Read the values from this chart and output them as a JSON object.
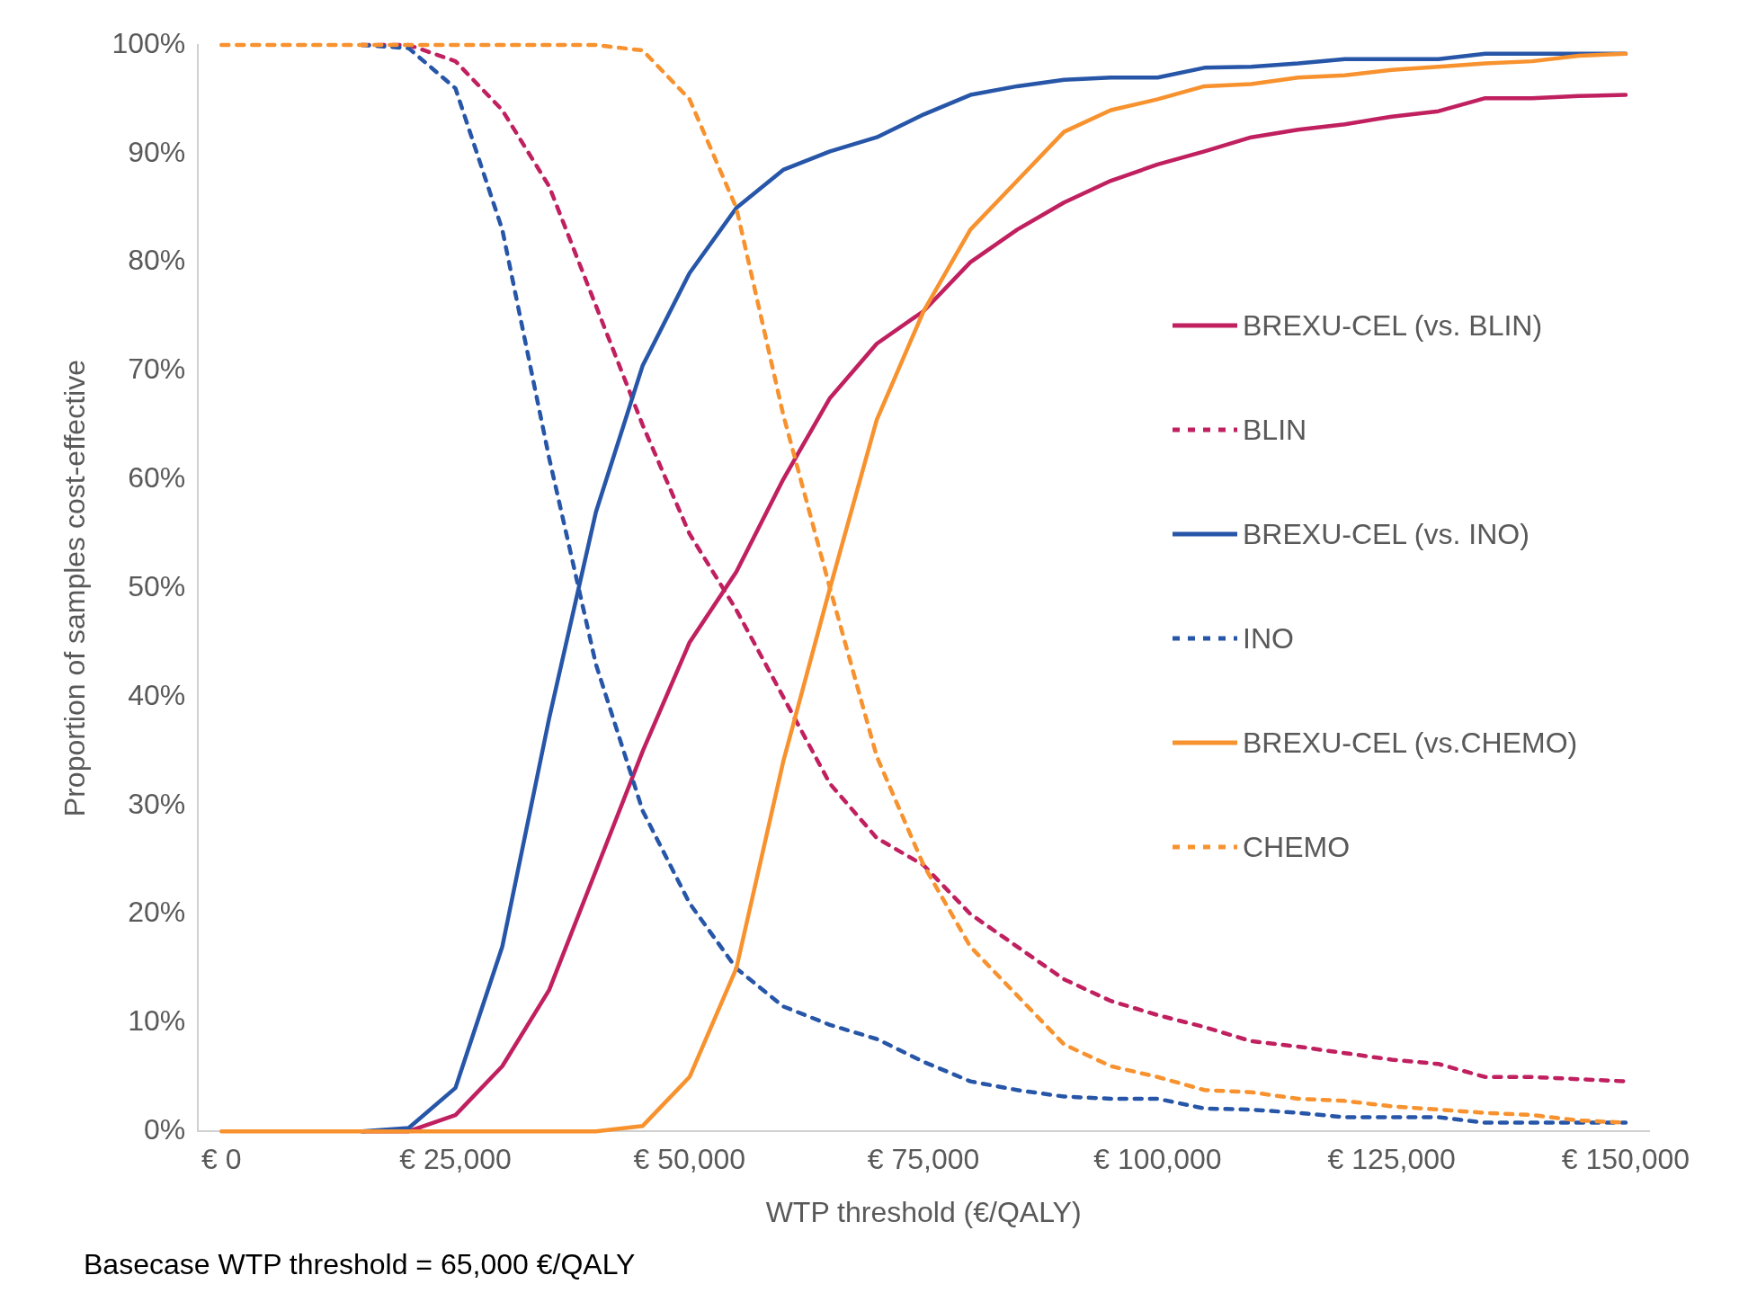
{
  "chart_data": {
    "type": "line",
    "xlabel": "WTP threshold (€/QALY)",
    "ylabel": "Proportion of samples cost-effective",
    "x": [
      0,
      5000,
      10000,
      15000,
      20000,
      25000,
      30000,
      35000,
      40000,
      45000,
      50000,
      55000,
      60000,
      65000,
      70000,
      75000,
      80000,
      85000,
      90000,
      95000,
      100000,
      105000,
      110000,
      115000,
      120000,
      125000,
      130000,
      135000,
      140000,
      145000,
      150000
    ],
    "series": [
      {
        "name": "BREXU-CEL (vs. BLIN)",
        "color": "#c0205f",
        "line_style": "solid",
        "values": [
          null,
          null,
          null,
          0,
          0,
          1.5,
          6,
          13,
          24,
          35,
          45,
          51.5,
          60,
          67.5,
          72.5,
          75.5,
          80,
          83,
          85.5,
          87.5,
          89,
          90.2,
          91.5,
          92.2,
          92.7,
          93.4,
          93.9,
          95.1,
          95.1,
          95.3,
          95.4
        ]
      },
      {
        "name": "BLIN",
        "color": "#c0205f",
        "line_style": "dashed",
        "values": [
          null,
          null,
          null,
          100,
          100,
          98.5,
          94,
          87,
          76,
          65,
          55,
          48,
          40,
          32,
          27,
          24.5,
          20,
          17,
          14,
          12,
          10.7,
          9.6,
          8.3,
          7.8,
          7.2,
          6.6,
          6.2,
          5,
          5,
          4.8,
          4.6
        ]
      },
      {
        "name": "BREXU-CEL (vs. INO)",
        "color": "#2756a8",
        "line_style": "solid",
        "values": [
          null,
          null,
          null,
          0,
          0.3,
          4,
          17,
          38,
          57,
          70.5,
          79,
          85,
          88.5,
          90.2,
          91.5,
          93.6,
          95.4,
          96.2,
          96.8,
          97,
          97,
          97.9,
          98,
          98.3,
          98.7,
          98.7,
          98.7,
          99.2,
          99.2,
          99.2,
          99.2
        ]
      },
      {
        "name": "INO",
        "color": "#2756a8",
        "line_style": "dashed",
        "values": [
          null,
          null,
          null,
          100,
          99.7,
          96,
          83,
          62,
          43,
          29.5,
          21,
          15,
          11.5,
          9.8,
          8.5,
          6.4,
          4.6,
          3.8,
          3.2,
          3,
          3,
          2.1,
          2,
          1.7,
          1.3,
          1.3,
          1.3,
          0.8,
          0.8,
          0.8,
          0.8
        ]
      },
      {
        "name": "BREXU-CEL (vs.CHEMO)",
        "color": "#f7922f",
        "line_style": "solid",
        "values": [
          0,
          0,
          0,
          0,
          0,
          0,
          0,
          0,
          0,
          0.5,
          5,
          15,
          34,
          50,
          65.5,
          75.5,
          83,
          87.5,
          92,
          94,
          95,
          96.2,
          96.4,
          97,
          97.2,
          97.7,
          98,
          98.3,
          98.5,
          99,
          99.2
        ]
      },
      {
        "name": "CHEMO",
        "color": "#f7922f",
        "line_style": "dashed",
        "values": [
          100,
          100,
          100,
          100,
          100,
          100,
          100,
          100,
          100,
          99.5,
          95,
          85,
          66,
          50,
          34.5,
          24.5,
          17,
          12.5,
          8,
          6,
          5,
          3.8,
          3.6,
          3,
          2.8,
          2.3,
          2,
          1.7,
          1.5,
          1,
          0.8
        ]
      }
    ],
    "xlim": [
      -2500,
      152500
    ],
    "xticks": [
      {
        "value": 0,
        "label": "€ 0"
      },
      {
        "value": 25000,
        "label": "€ 25,000"
      },
      {
        "value": 50000,
        "label": "€ 50,000"
      },
      {
        "value": 75000,
        "label": "€ 75,000"
      },
      {
        "value": 100000,
        "label": "€ 100,000"
      },
      {
        "value": 125000,
        "label": "€ 125,000"
      },
      {
        "value": 150000,
        "label": "€ 150,000"
      }
    ],
    "ylim": [
      0,
      100
    ],
    "yticks": [
      {
        "value": 0,
        "label": "0%"
      },
      {
        "value": 10,
        "label": "10%"
      },
      {
        "value": 20,
        "label": "20%"
      },
      {
        "value": 30,
        "label": "30%"
      },
      {
        "value": 40,
        "label": "40%"
      },
      {
        "value": 50,
        "label": "50%"
      },
      {
        "value": 60,
        "label": "60%"
      },
      {
        "value": 70,
        "label": "70%"
      },
      {
        "value": 80,
        "label": "80%"
      },
      {
        "value": 90,
        "label": "90%"
      },
      {
        "value": 100,
        "label": "100%"
      }
    ],
    "grid": false,
    "legend": "right",
    "marker": "none",
    "annotations": [
      "Basecase WTP threshold = 65,000 €/QALY"
    ]
  }
}
